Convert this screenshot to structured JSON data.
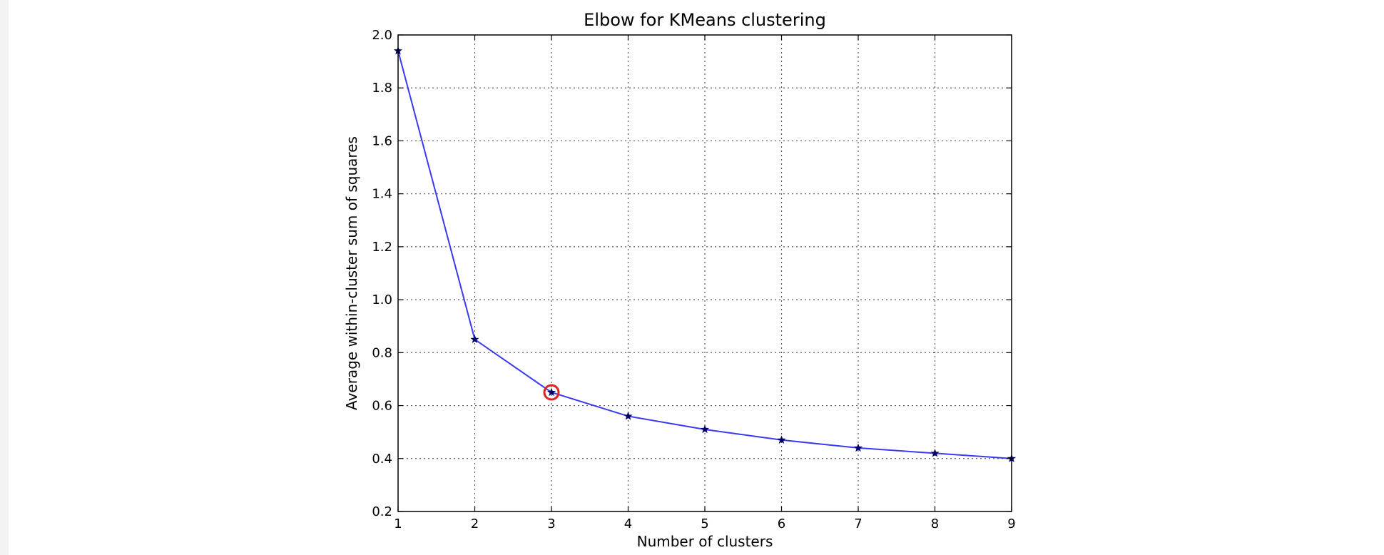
{
  "chart_data": {
    "type": "line",
    "title": "Elbow for KMeans clustering",
    "xlabel": "Number of clusters",
    "ylabel": "Average within-cluster sum of squares",
    "x": [
      1,
      2,
      3,
      4,
      5,
      6,
      7,
      8,
      9
    ],
    "series": [
      {
        "values": [
          1.94,
          0.85,
          0.65,
          0.56,
          0.51,
          0.47,
          0.44,
          0.42,
          0.4
        ],
        "color": "#3a3af0",
        "marker": "star",
        "marker_color": "#000066"
      }
    ],
    "xlim": [
      1,
      9
    ],
    "ylim": [
      0.2,
      2.0
    ],
    "xticks": [
      "1",
      "2",
      "3",
      "4",
      "5",
      "6",
      "7",
      "8",
      "9"
    ],
    "yticks": [
      "0.2",
      "0.4",
      "0.6",
      "0.8",
      "1.0",
      "1.2",
      "1.4",
      "1.6",
      "1.8",
      "2.0"
    ],
    "grid": true,
    "highlight": {
      "x": 3,
      "y": 0.65,
      "color": "#e02020",
      "shape": "circle"
    }
  }
}
